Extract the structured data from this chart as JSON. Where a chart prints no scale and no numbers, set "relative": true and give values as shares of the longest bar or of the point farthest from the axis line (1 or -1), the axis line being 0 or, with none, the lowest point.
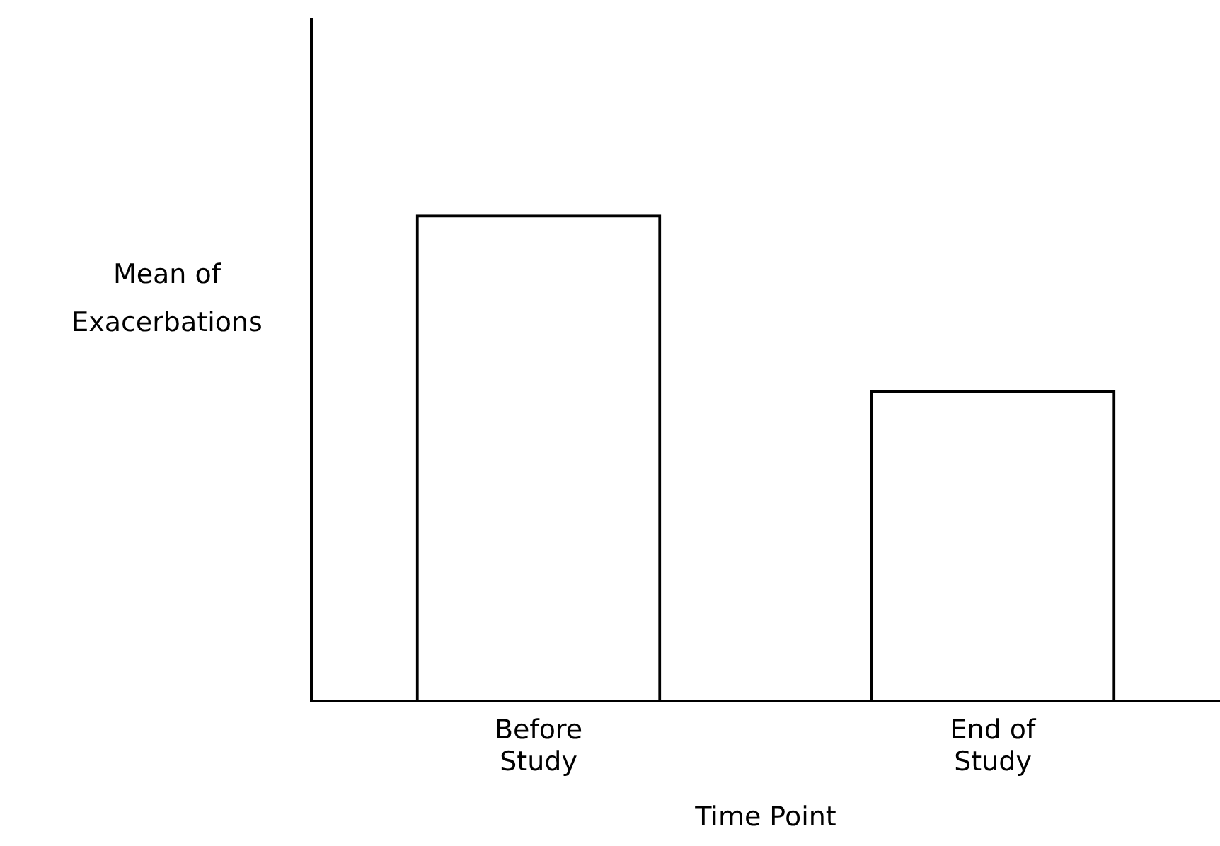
{
  "chart_data": {
    "type": "bar",
    "categories": [
      "Before Study",
      "End of Study"
    ],
    "values": [
      1,
      0.64
    ],
    "color": "#000000",
    "relative": true,
    "xlabel": "Time Point",
    "ylabel": "Mean of Exacerbations",
    "grid": false,
    "legend": false
  }
}
